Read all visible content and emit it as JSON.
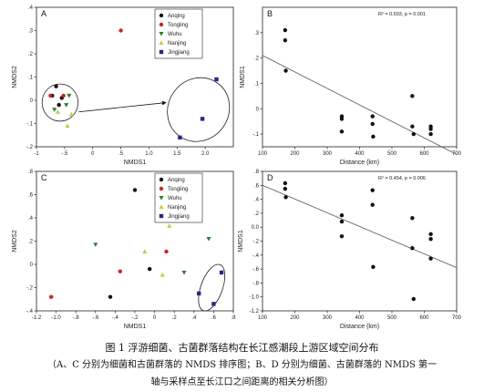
{
  "caption": {
    "title": "图 1 浮游细菌、古菌群落结构在长江感潮段上游区域空间分布",
    "line2": "（A、C 分别为细菌和古菌群落的 NMDS 排序图；B、D 分别为细菌、古菌群落的 NMDS 第一",
    "line3": "轴与采样点至长江口之间距离的相关分析图）"
  },
  "colors": {
    "Anqing": "#111111",
    "Tongling": "#d0202a",
    "Wuhu": "#2f7d32",
    "Nanjing": "#c8c84a",
    "Jingjiang": "#232a8c"
  },
  "chart_data": [
    {
      "id": "A",
      "type": "scatter",
      "panel_label": "A",
      "xlabel": "NMDS1",
      "ylabel": "NMDS2",
      "xlim": [
        -1.0,
        2.5
      ],
      "ylim": [
        -0.2,
        0.4
      ],
      "xticks": [
        -1,
        -0.5,
        0,
        0.5,
        1,
        1.5,
        2
      ],
      "xtick_labels": [
        "-1",
        "-.5",
        "0",
        ".5",
        "1.0",
        "1.5",
        "2.0"
      ],
      "yticks": [
        -0.2,
        -0.1,
        0,
        0.1,
        0.2,
        0.3,
        0.4
      ],
      "ytick_labels": [
        "-.2",
        "-.1",
        "0",
        ".1",
        ".2",
        ".3",
        ".4"
      ],
      "legend": {
        "position": "top-right",
        "entries": [
          "Anqing",
          "Tongling",
          "Wuhu",
          "Nanjing",
          "Jingjiang"
        ]
      },
      "series": [
        {
          "name": "Anqing",
          "marker": "circle",
          "points": [
            [
              -0.65,
              0.06
            ],
            [
              -0.72,
              0.02
            ],
            [
              -0.55,
              0.01
            ],
            [
              -0.6,
              -0.02
            ]
          ]
        },
        {
          "name": "Tongling",
          "marker": "circle",
          "points": [
            [
              0.5,
              0.3
            ],
            [
              -0.75,
              0.02
            ],
            [
              -0.52,
              0.02
            ]
          ]
        },
        {
          "name": "Wuhu",
          "marker": "triangle-down",
          "points": [
            [
              -0.68,
              -0.04
            ],
            [
              -0.42,
              0.02
            ],
            [
              -0.47,
              -0.02
            ]
          ]
        },
        {
          "name": "Nanjing",
          "marker": "triangle-up",
          "points": [
            [
              -0.62,
              -0.05
            ],
            [
              -0.38,
              -0.06
            ],
            [
              -0.45,
              -0.11
            ]
          ]
        },
        {
          "name": "Jingjiang",
          "marker": "square",
          "points": [
            [
              2.2,
              0.09
            ],
            [
              1.95,
              -0.08
            ],
            [
              1.55,
              -0.16
            ]
          ]
        }
      ],
      "ellipses": [
        {
          "cx": -0.58,
          "cy": -0.01,
          "rx": 0.32,
          "ry": 0.08,
          "angle": 0
        },
        {
          "cx": 1.88,
          "cy": -0.04,
          "rx": 0.58,
          "ry": 0.13,
          "angle": -55
        }
      ],
      "arrow": {
        "from": [
          -0.25,
          -0.05
        ],
        "to": [
          1.3,
          -0.01
        ]
      }
    },
    {
      "id": "B",
      "type": "scatter",
      "panel_label": "B",
      "annotation": "R² = 0.593, p = 0.001",
      "xlabel": "Distance (km)",
      "ylabel": "NMDS1",
      "xlim": [
        100,
        700
      ],
      "ylim": [
        -0.15,
        0.4
      ],
      "xticks": [
        100,
        200,
        300,
        400,
        500,
        600,
        700
      ],
      "yticks": [
        -0.1,
        0,
        0.1,
        0.2,
        0.3
      ],
      "ytick_labels": [
        "-.1",
        "0",
        ".1",
        ".2",
        ".3"
      ],
      "points": [
        [
          170,
          0.31
        ],
        [
          170,
          0.27
        ],
        [
          172,
          0.15
        ],
        [
          345,
          -0.03
        ],
        [
          345,
          -0.04
        ],
        [
          345,
          -0.09
        ],
        [
          440,
          -0.03
        ],
        [
          440,
          -0.06
        ],
        [
          442,
          -0.11
        ],
        [
          563,
          0.05
        ],
        [
          563,
          -0.07
        ],
        [
          567,
          -0.1
        ],
        [
          620,
          -0.07
        ],
        [
          620,
          -0.08
        ],
        [
          620,
          -0.1
        ]
      ],
      "fit": {
        "x": [
          100,
          700
        ],
        "y": [
          0.21,
          -0.18
        ]
      }
    },
    {
      "id": "C",
      "type": "scatter",
      "panel_label": "C",
      "xlabel": "NMDS1",
      "ylabel": "NMDS2",
      "xlim": [
        -1.2,
        0.8
      ],
      "ylim": [
        -0.4,
        0.8
      ],
      "xticks": [
        -1.2,
        -1.0,
        -0.8,
        -0.6,
        -0.4,
        -0.2,
        0,
        0.2,
        0.4,
        0.6,
        0.8
      ],
      "xtick_labels": [
        "-1.2",
        "-1.0",
        "-.8",
        "-.6",
        "-.4",
        "-.2",
        "0",
        ".2",
        ".4",
        ".6",
        ".8"
      ],
      "yticks": [
        -0.4,
        -0.2,
        0,
        0.2,
        0.4,
        0.6,
        0.8
      ],
      "ytick_labels": [
        "-.4",
        "-.2",
        "0",
        ".2",
        ".4",
        ".6",
        ".8"
      ],
      "legend": {
        "position": "top-right",
        "entries": [
          "Anqing",
          "Tongling",
          "Wuhu",
          "Nanjing",
          "Jingjiang"
        ]
      },
      "series": [
        {
          "name": "Anqing",
          "marker": "circle",
          "points": [
            [
              -0.2,
              0.64
            ],
            [
              -0.45,
              -0.28
            ],
            [
              -0.05,
              -0.04
            ]
          ]
        },
        {
          "name": "Tongling",
          "marker": "circle",
          "points": [
            [
              -1.05,
              -0.28
            ],
            [
              -0.35,
              -0.06
            ],
            [
              0.12,
              0.11
            ]
          ]
        },
        {
          "name": "Wuhu",
          "marker": "triangle-down",
          "points": [
            [
              -0.6,
              0.17
            ],
            [
              0.3,
              -0.07
            ],
            [
              0.55,
              0.22
            ]
          ]
        },
        {
          "name": "Nanjing",
          "marker": "triangle-up",
          "points": [
            [
              -0.1,
              0.11
            ],
            [
              0.15,
              0.33
            ],
            [
              0.08,
              -0.09
            ]
          ]
        },
        {
          "name": "Jingjiang",
          "marker": "square",
          "points": [
            [
              0.45,
              -0.25
            ],
            [
              0.68,
              -0.07
            ],
            [
              0.6,
              -0.34
            ]
          ]
        }
      ],
      "ellipses": [
        {
          "cx": 0.58,
          "cy": -0.2,
          "rx": 0.11,
          "ry": 0.21,
          "angle": 20
        }
      ]
    },
    {
      "id": "D",
      "type": "scatter",
      "panel_label": "D",
      "annotation": "R² = 0.454, p = 0.006",
      "xlabel": "Distance (km)",
      "ylabel": "NMDS1",
      "xlim": [
        100,
        700
      ],
      "ylim": [
        -1.2,
        0.8
      ],
      "xticks": [
        100,
        200,
        300,
        400,
        500,
        600,
        700
      ],
      "yticks": [
        -1.2,
        -1.0,
        -0.8,
        -0.6,
        -0.4,
        -0.2,
        0,
        0.2,
        0.4,
        0.6,
        0.8
      ],
      "ytick_labels": [
        "-1.2",
        "-1.0",
        "-.8",
        "-.6",
        "-.4",
        "-.2",
        "0.0",
        ".2",
        ".4",
        ".6",
        ".8"
      ],
      "points": [
        [
          170,
          0.63
        ],
        [
          170,
          0.55
        ],
        [
          172,
          0.43
        ],
        [
          345,
          0.17
        ],
        [
          345,
          0.08
        ],
        [
          345,
          -0.13
        ],
        [
          440,
          0.53
        ],
        [
          440,
          0.32
        ],
        [
          442,
          -0.57
        ],
        [
          563,
          0.13
        ],
        [
          563,
          -0.3
        ],
        [
          567,
          -1.03
        ],
        [
          620,
          -0.1
        ],
        [
          620,
          -0.17
        ],
        [
          620,
          -0.45
        ]
      ],
      "fit": {
        "x": [
          100,
          700
        ],
        "y": [
          0.6,
          -0.58
        ]
      }
    }
  ]
}
